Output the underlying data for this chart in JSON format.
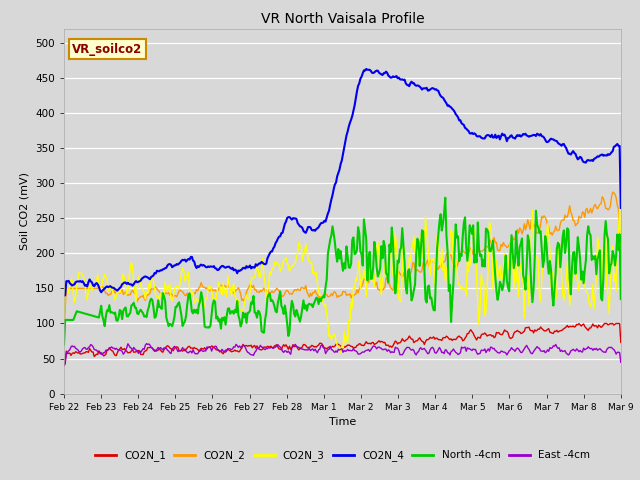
{
  "title": "VR North Vaisala Profile",
  "xlabel": "Time",
  "ylabel": "Soil CO2 (mV)",
  "ylim": [
    0,
    520
  ],
  "yticks": [
    0,
    50,
    100,
    150,
    200,
    250,
    300,
    350,
    400,
    450,
    500
  ],
  "background_color": "#d8d8d8",
  "plot_bg_color": "#d8d8d8",
  "annotation_text": "VR_soilco2",
  "annotation_color": "#8B0000",
  "annotation_bg": "#ffffcc",
  "annotation_border": "#cc8800",
  "series": {
    "CO2N_1": {
      "color": "#dd0000",
      "lw": 1.0
    },
    "CO2N_2": {
      "color": "#ff9900",
      "lw": 1.0
    },
    "CO2N_3": {
      "color": "#ffff00",
      "lw": 1.0
    },
    "CO2N_4": {
      "color": "#0000ee",
      "lw": 1.5
    },
    "North -4cm": {
      "color": "#00cc00",
      "lw": 1.5
    },
    "East -4cm": {
      "color": "#9900cc",
      "lw": 1.0
    }
  },
  "legend_colors": {
    "CO2N_1": "#dd0000",
    "CO2N_2": "#ff9900",
    "CO2N_3": "#ffff00",
    "CO2N_4": "#0000ee",
    "North -4cm": "#00cc00",
    "East -4cm": "#9900cc"
  },
  "x_tick_labels": [
    "Feb 22",
    "Feb 23",
    "Feb 24",
    "Feb 25",
    "Feb 26",
    "Feb 27",
    "Feb 28",
    "Mar 1",
    "Mar 2",
    "Mar 3",
    "Mar 4",
    "Mar 5",
    "Mar 6",
    "Mar 7",
    "Mar 8",
    "Mar 9"
  ],
  "n_points": 480
}
